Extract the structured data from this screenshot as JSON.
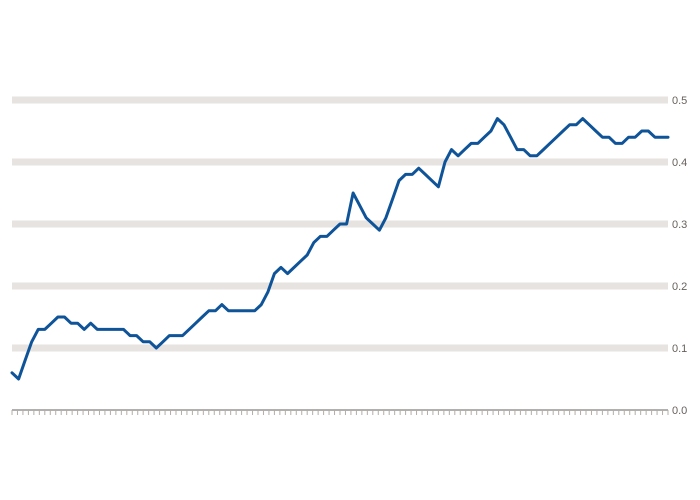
{
  "chart_data": {
    "type": "line",
    "title": "",
    "subtitle": "",
    "xlabel": "",
    "ylabel": "",
    "xlim": [
      0,
      100
    ],
    "ylim": [
      0.0,
      0.52
    ],
    "y_ticks": [
      0.0,
      0.1,
      0.2,
      0.3,
      0.4,
      0.5
    ],
    "y_axis_position": "right",
    "grid": true,
    "series": [
      {
        "color": "#0f5499",
        "x": [
          0,
          1,
          2,
          3,
          4,
          5,
          6,
          7,
          8,
          9,
          10,
          11,
          12,
          13,
          14,
          15,
          16,
          17,
          18,
          19,
          20,
          21,
          22,
          23,
          24,
          25,
          26,
          27,
          28,
          29,
          30,
          31,
          32,
          33,
          34,
          35,
          36,
          37,
          38,
          39,
          40,
          41,
          42,
          43,
          44,
          45,
          46,
          47,
          48,
          49,
          50,
          51,
          52,
          53,
          54,
          55,
          56,
          57,
          58,
          59,
          60,
          61,
          62,
          63,
          64,
          65,
          66,
          67,
          68,
          69,
          70,
          71,
          72,
          73,
          74,
          75,
          76,
          77,
          78,
          79,
          80,
          81,
          82,
          83,
          84,
          85,
          86,
          87,
          88,
          89,
          90,
          91,
          92,
          93,
          94,
          95,
          96,
          97,
          98,
          99,
          100
        ],
        "values": [
          0.06,
          0.05,
          0.08,
          0.11,
          0.13,
          0.13,
          0.14,
          0.15,
          0.15,
          0.14,
          0.14,
          0.13,
          0.14,
          0.13,
          0.13,
          0.13,
          0.13,
          0.13,
          0.12,
          0.12,
          0.11,
          0.11,
          0.1,
          0.11,
          0.12,
          0.12,
          0.12,
          0.13,
          0.14,
          0.15,
          0.16,
          0.16,
          0.17,
          0.16,
          0.16,
          0.16,
          0.16,
          0.16,
          0.17,
          0.19,
          0.22,
          0.23,
          0.22,
          0.23,
          0.24,
          0.25,
          0.27,
          0.28,
          0.28,
          0.29,
          0.3,
          0.3,
          0.35,
          0.33,
          0.31,
          0.3,
          0.29,
          0.31,
          0.34,
          0.37,
          0.38,
          0.38,
          0.39,
          0.38,
          0.37,
          0.36,
          0.4,
          0.42,
          0.41,
          0.42,
          0.43,
          0.43,
          0.44,
          0.45,
          0.47,
          0.46,
          0.44,
          0.42,
          0.42,
          0.41,
          0.41,
          0.42,
          0.43,
          0.44,
          0.45,
          0.46,
          0.46,
          0.47,
          0.46,
          0.45,
          0.44,
          0.44,
          0.43,
          0.43,
          0.44,
          0.44,
          0.45,
          0.45,
          0.44,
          0.44,
          0.44
        ]
      }
    ],
    "x_tick_labels": []
  }
}
